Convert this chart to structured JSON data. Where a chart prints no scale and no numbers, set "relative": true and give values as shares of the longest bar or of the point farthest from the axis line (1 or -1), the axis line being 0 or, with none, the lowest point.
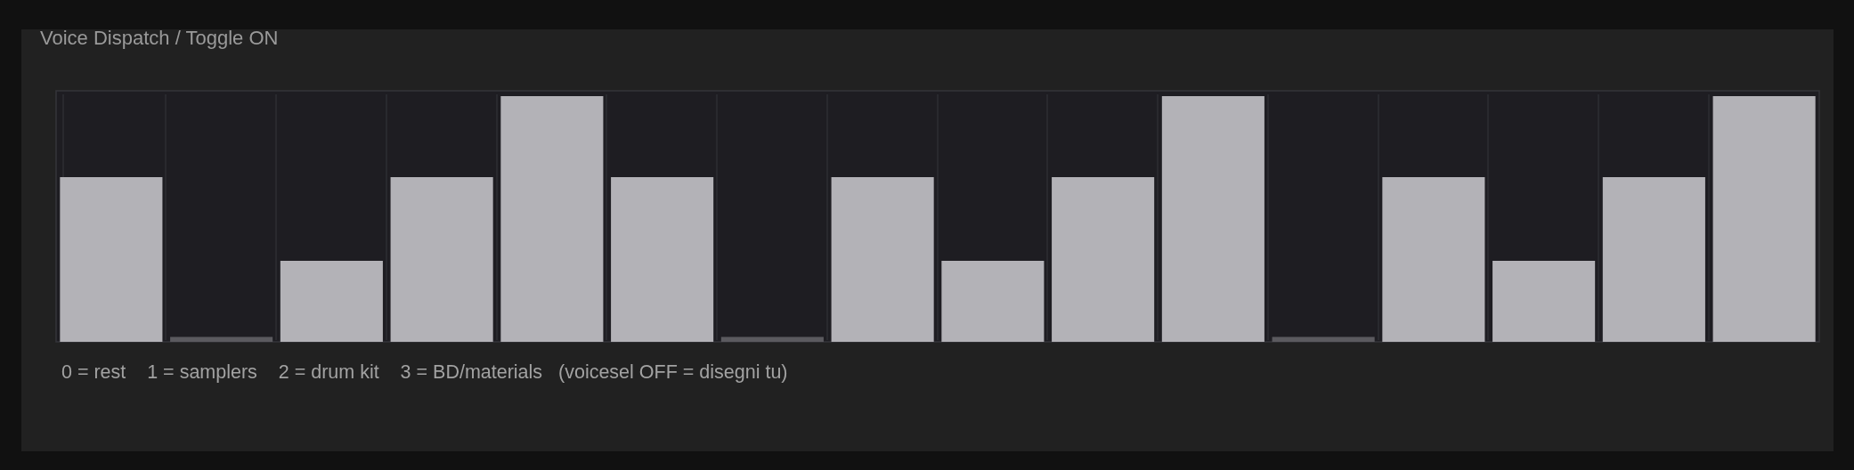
{
  "chart_data": {
    "type": "bar",
    "title": "Voice Dispatch / Toggle ON",
    "categories": [
      null,
      null,
      null,
      null,
      null,
      null,
      null,
      null,
      null,
      null,
      null,
      null,
      null,
      null,
      null,
      null
    ],
    "values": [
      0.67,
      0.02,
      0.33,
      0.67,
      1,
      0.67,
      0.02,
      0.67,
      0.33,
      0.67,
      1,
      0.02,
      0.67,
      0.33,
      0.67,
      1
    ],
    "colors": [
      "#b3b2b7",
      "#5b5a5f",
      "#b3b2b7",
      "#b3b2b7",
      "#b3b2b7",
      "#b3b2b7",
      "#5b5a5f",
      "#b3b2b7",
      "#b3b2b7",
      "#b3b2b7",
      "#b3b2b7",
      "#5b5a5f",
      "#b3b2b7",
      "#b3b2b7",
      "#b3b2b7",
      "#b3b2b7"
    ],
    "relative": true,
    "grid": "x",
    "annotations": [
      "0 = rest    1 = samplers    2 = drum kit    3 = BD/materials   (voicesel OFF = disegni tu)"
    ]
  }
}
